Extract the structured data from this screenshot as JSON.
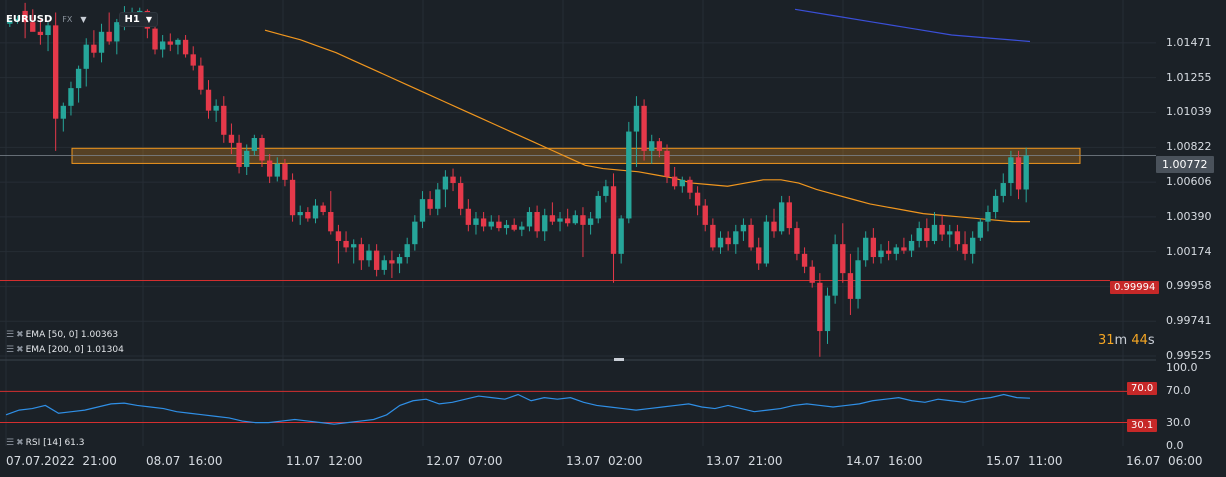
{
  "header": {
    "symbol": "EURUSD",
    "market": "FX",
    "timeframe": "H1"
  },
  "indicators": {
    "ema50": "EMA [50, 0] 1.00363",
    "ema200": "EMA [200, 0] 1.01304",
    "rsi": "RSI [14] 61.3"
  },
  "timer": {
    "minutes": "31",
    "min_unit": "m",
    "seconds": "44",
    "sec_unit": "s"
  },
  "price_axis": [
    "1.01471",
    "1.01255",
    "1.01039",
    "1.00822",
    "1.00606",
    "1.00390",
    "1.00174",
    "0.99958",
    "0.99741",
    "0.99525"
  ],
  "price_tags": {
    "current": "1.00772",
    "line": "0.99994"
  },
  "rsi_axis": [
    "100.0",
    "70.0",
    "30.0",
    "0.0"
  ],
  "rsi_tags": {
    "upper": "70.0",
    "lower": "30.1"
  },
  "time_axis": [
    "07.07.2022  21:00",
    "08.07  16:00",
    "11.07  12:00",
    "12.07  07:00",
    "13.07  02:00",
    "13.07  21:00",
    "14.07  16:00",
    "15.07  11:00",
    "16.07  06:00"
  ],
  "colors": {
    "bg": "#1b2127",
    "up": "#26a69a",
    "down": "#e5394a",
    "ema50": "#f0961e",
    "ema200": "#3a4fd8",
    "rsi": "#2f8fe6",
    "zone": "#f0961e",
    "level": "#d32f2f"
  },
  "chart_data": {
    "type": "candlestick",
    "price_range": [
      0.99525,
      1.01688
    ],
    "rsi_range": [
      0,
      100
    ],
    "candles": [
      {
        "o": 1.0159,
        "h": 1.0162,
        "l": 1.0157,
        "c": 1.0161
      },
      {
        "o": 1.0161,
        "h": 1.0164,
        "l": 1.0159,
        "c": 1.0162
      },
      {
        "o": 1.0167,
        "h": 1.0172,
        "l": 1.015,
        "c": 1.016
      },
      {
        "o": 1.016,
        "h": 1.0168,
        "l": 1.0155,
        "c": 1.0154
      },
      {
        "o": 1.0154,
        "h": 1.0162,
        "l": 1.0146,
        "c": 1.0152
      },
      {
        "o": 1.0152,
        "h": 1.016,
        "l": 1.0142,
        "c": 1.0158
      },
      {
        "o": 1.0158,
        "h": 1.0166,
        "l": 1.008,
        "c": 1.01
      },
      {
        "o": 1.01,
        "h": 1.011,
        "l": 1.0092,
        "c": 1.0108
      },
      {
        "o": 1.0108,
        "h": 1.0123,
        "l": 1.0102,
        "c": 1.0119
      },
      {
        "o": 1.0119,
        "h": 1.0133,
        "l": 1.011,
        "c": 1.0131
      },
      {
        "o": 1.0131,
        "h": 1.015,
        "l": 1.012,
        "c": 1.0146
      },
      {
        "o": 1.0146,
        "h": 1.0155,
        "l": 1.0138,
        "c": 1.0141
      },
      {
        "o": 1.0141,
        "h": 1.0159,
        "l": 1.0135,
        "c": 1.0154
      },
      {
        "o": 1.0154,
        "h": 1.0166,
        "l": 1.0146,
        "c": 1.0148
      },
      {
        "o": 1.0148,
        "h": 1.0162,
        "l": 1.014,
        "c": 1.016
      },
      {
        "o": 1.016,
        "h": 1.017,
        "l": 1.0155,
        "c": 1.0165
      },
      {
        "o": 1.0165,
        "h": 1.0169,
        "l": 1.0158,
        "c": 1.0166
      },
      {
        "o": 1.0166,
        "h": 1.0169,
        "l": 1.016,
        "c": 1.0167
      },
      {
        "o": 1.0167,
        "h": 1.0168,
        "l": 1.015,
        "c": 1.0156
      },
      {
        "o": 1.0156,
        "h": 1.016,
        "l": 1.014,
        "c": 1.0143
      },
      {
        "o": 1.0143,
        "h": 1.0152,
        "l": 1.0138,
        "c": 1.0148
      },
      {
        "o": 1.0148,
        "h": 1.0153,
        "l": 1.0142,
        "c": 1.0146
      },
      {
        "o": 1.0146,
        "h": 1.015,
        "l": 1.014,
        "c": 1.0149
      },
      {
        "o": 1.0149,
        "h": 1.0152,
        "l": 1.0138,
        "c": 1.014
      },
      {
        "o": 1.014,
        "h": 1.0145,
        "l": 1.013,
        "c": 1.0133
      },
      {
        "o": 1.0133,
        "h": 1.0138,
        "l": 1.0115,
        "c": 1.0118
      },
      {
        "o": 1.0118,
        "h": 1.0124,
        "l": 1.01,
        "c": 1.0105
      },
      {
        "o": 1.0105,
        "h": 1.0112,
        "l": 1.0098,
        "c": 1.0108
      },
      {
        "o": 1.0108,
        "h": 1.0114,
        "l": 1.0085,
        "c": 1.009
      },
      {
        "o": 1.009,
        "h": 1.0097,
        "l": 1.0078,
        "c": 1.0085
      },
      {
        "o": 1.0085,
        "h": 1.009,
        "l": 1.0066,
        "c": 1.007
      },
      {
        "o": 1.007,
        "h": 1.0084,
        "l": 1.0065,
        "c": 1.008
      },
      {
        "o": 1.008,
        "h": 1.009,
        "l": 1.0077,
        "c": 1.0088
      },
      {
        "o": 1.0088,
        "h": 1.009,
        "l": 1.007,
        "c": 1.0074
      },
      {
        "o": 1.0074,
        "h": 1.0078,
        "l": 1.006,
        "c": 1.0064
      },
      {
        "o": 1.0064,
        "h": 1.0076,
        "l": 1.0061,
        "c": 1.0072
      },
      {
        "o": 1.0072,
        "h": 1.0075,
        "l": 1.0058,
        "c": 1.0062
      },
      {
        "o": 1.0062,
        "h": 1.0066,
        "l": 1.0036,
        "c": 1.004
      },
      {
        "o": 1.004,
        "h": 1.0046,
        "l": 1.0034,
        "c": 1.0042
      },
      {
        "o": 1.0042,
        "h": 1.0045,
        "l": 1.0036,
        "c": 1.0038
      },
      {
        "o": 1.0038,
        "h": 1.005,
        "l": 1.0035,
        "c": 1.0046
      },
      {
        "o": 1.0046,
        "h": 1.0048,
        "l": 1.004,
        "c": 1.0042
      },
      {
        "o": 1.0042,
        "h": 1.0055,
        "l": 1.0028,
        "c": 1.003
      },
      {
        "o": 1.003,
        "h": 1.0034,
        "l": 1.001,
        "c": 1.0024
      },
      {
        "o": 1.0024,
        "h": 1.003,
        "l": 1.0017,
        "c": 1.002
      },
      {
        "o": 1.002,
        "h": 1.0025,
        "l": 1.001,
        "c": 1.0022
      },
      {
        "o": 1.0022,
        "h": 1.0026,
        "l": 1.0006,
        "c": 1.0012
      },
      {
        "o": 1.0012,
        "h": 1.0022,
        "l": 1.0008,
        "c": 1.0018
      },
      {
        "o": 1.0018,
        "h": 1.0022,
        "l": 1.0002,
        "c": 1.0006
      },
      {
        "o": 1.0006,
        "h": 1.0015,
        "l": 1.0003,
        "c": 1.0012
      },
      {
        "o": 1.0012,
        "h": 1.0018,
        "l": 1.0001,
        "c": 1.001
      },
      {
        "o": 1.001,
        "h": 1.0016,
        "l": 1.0004,
        "c": 1.0014
      },
      {
        "o": 1.0014,
        "h": 1.0026,
        "l": 1.001,
        "c": 1.0022
      },
      {
        "o": 1.0022,
        "h": 1.004,
        "l": 1.0018,
        "c": 1.0036
      },
      {
        "o": 1.0036,
        "h": 1.0055,
        "l": 1.0032,
        "c": 1.005
      },
      {
        "o": 1.005,
        "h": 1.0055,
        "l": 1.004,
        "c": 1.0044
      },
      {
        "o": 1.0044,
        "h": 1.006,
        "l": 1.004,
        "c": 1.0056
      },
      {
        "o": 1.0056,
        "h": 1.0068,
        "l": 1.0045,
        "c": 1.0064
      },
      {
        "o": 1.0064,
        "h": 1.0069,
        "l": 1.0055,
        "c": 1.006
      },
      {
        "o": 1.006,
        "h": 1.0064,
        "l": 1.004,
        "c": 1.0044
      },
      {
        "o": 1.0044,
        "h": 1.005,
        "l": 1.003,
        "c": 1.0034
      },
      {
        "o": 1.0034,
        "h": 1.0042,
        "l": 1.0028,
        "c": 1.0038
      },
      {
        "o": 1.0038,
        "h": 1.0042,
        "l": 1.003,
        "c": 1.0033
      },
      {
        "o": 1.0033,
        "h": 1.004,
        "l": 1.0031,
        "c": 1.0036
      },
      {
        "o": 1.0036,
        "h": 1.004,
        "l": 1.003,
        "c": 1.0032
      },
      {
        "o": 1.0032,
        "h": 1.0037,
        "l": 1.0028,
        "c": 1.0034
      },
      {
        "o": 1.0034,
        "h": 1.0038,
        "l": 1.003,
        "c": 1.0031
      },
      {
        "o": 1.0031,
        "h": 1.0036,
        "l": 1.0027,
        "c": 1.0033
      },
      {
        "o": 1.0033,
        "h": 1.0045,
        "l": 1.003,
        "c": 1.0042
      },
      {
        "o": 1.0042,
        "h": 1.0046,
        "l": 1.0026,
        "c": 1.003
      },
      {
        "o": 1.003,
        "h": 1.0044,
        "l": 1.0024,
        "c": 1.004
      },
      {
        "o": 1.004,
        "h": 1.0048,
        "l": 1.0034,
        "c": 1.0036
      },
      {
        "o": 1.0036,
        "h": 1.0042,
        "l": 1.003,
        "c": 1.0038
      },
      {
        "o": 1.0038,
        "h": 1.0044,
        "l": 1.0033,
        "c": 1.0035
      },
      {
        "o": 1.0035,
        "h": 1.0043,
        "l": 1.0034,
        "c": 1.004
      },
      {
        "o": 1.004,
        "h": 1.0045,
        "l": 1.0014,
        "c": 1.0034
      },
      {
        "o": 1.0034,
        "h": 1.0042,
        "l": 1.0028,
        "c": 1.0038
      },
      {
        "o": 1.0038,
        "h": 1.0055,
        "l": 1.0035,
        "c": 1.0052
      },
      {
        "o": 1.0052,
        "h": 1.0062,
        "l": 1.0048,
        "c": 1.0058
      },
      {
        "o": 1.0058,
        "h": 1.0066,
        "l": 0.9998,
        "c": 1.0016
      },
      {
        "o": 1.0016,
        "h": 1.004,
        "l": 1.001,
        "c": 1.0038
      },
      {
        "o": 1.0038,
        "h": 1.0098,
        "l": 1.0035,
        "c": 1.0092
      },
      {
        "o": 1.0092,
        "h": 1.0114,
        "l": 1.007,
        "c": 1.0108
      },
      {
        "o": 1.0108,
        "h": 1.0112,
        "l": 1.0074,
        "c": 1.008
      },
      {
        "o": 1.008,
        "h": 1.009,
        "l": 1.0072,
        "c": 1.0086
      },
      {
        "o": 1.0086,
        "h": 1.0088,
        "l": 1.0076,
        "c": 1.008
      },
      {
        "o": 1.008,
        "h": 1.0084,
        "l": 1.006,
        "c": 1.0064
      },
      {
        "o": 1.0064,
        "h": 1.007,
        "l": 1.0056,
        "c": 1.0058
      },
      {
        "o": 1.0058,
        "h": 1.0064,
        "l": 1.0054,
        "c": 1.0062
      },
      {
        "o": 1.0062,
        "h": 1.0064,
        "l": 1.005,
        "c": 1.0054
      },
      {
        "o": 1.0054,
        "h": 1.0058,
        "l": 1.004,
        "c": 1.0046
      },
      {
        "o": 1.0046,
        "h": 1.005,
        "l": 1.003,
        "c": 1.0034
      },
      {
        "o": 1.0034,
        "h": 1.0038,
        "l": 1.0018,
        "c": 1.002
      },
      {
        "o": 1.002,
        "h": 1.003,
        "l": 1.0016,
        "c": 1.0026
      },
      {
        "o": 1.0026,
        "h": 1.003,
        "l": 1.0018,
        "c": 1.0022
      },
      {
        "o": 1.0022,
        "h": 1.0034,
        "l": 1.0016,
        "c": 1.003
      },
      {
        "o": 1.003,
        "h": 1.0038,
        "l": 1.0024,
        "c": 1.0034
      },
      {
        "o": 1.0034,
        "h": 1.0038,
        "l": 1.0018,
        "c": 1.002
      },
      {
        "o": 1.002,
        "h": 1.0026,
        "l": 1.0006,
        "c": 1.001
      },
      {
        "o": 1.001,
        "h": 1.004,
        "l": 1.0008,
        "c": 1.0036
      },
      {
        "o": 1.0036,
        "h": 1.0044,
        "l": 1.0026,
        "c": 1.003
      },
      {
        "o": 1.003,
        "h": 1.0052,
        "l": 1.0028,
        "c": 1.0048
      },
      {
        "o": 1.0048,
        "h": 1.0052,
        "l": 1.0028,
        "c": 1.0032
      },
      {
        "o": 1.0032,
        "h": 1.0036,
        "l": 1.0012,
        "c": 1.0016
      },
      {
        "o": 1.0016,
        "h": 1.002,
        "l": 1.0004,
        "c": 1.0008
      },
      {
        "o": 1.0008,
        "h": 1.0012,
        "l": 0.9995,
        "c": 0.9998
      },
      {
        "o": 0.9998,
        "h": 1.0004,
        "l": 0.9952,
        "c": 0.9968
      },
      {
        "o": 0.9968,
        "h": 0.9995,
        "l": 0.996,
        "c": 0.999
      },
      {
        "o": 0.999,
        "h": 1.0028,
        "l": 0.9985,
        "c": 1.0022
      },
      {
        "o": 1.0022,
        "h": 1.0035,
        "l": 0.9998,
        "c": 1.0004
      },
      {
        "o": 1.0004,
        "h": 1.0016,
        "l": 0.9978,
        "c": 0.9988
      },
      {
        "o": 0.9988,
        "h": 1.002,
        "l": 0.9982,
        "c": 1.0012
      },
      {
        "o": 1.0012,
        "h": 1.003,
        "l": 1.0008,
        "c": 1.0026
      },
      {
        "o": 1.0026,
        "h": 1.0032,
        "l": 1.001,
        "c": 1.0014
      },
      {
        "o": 1.0014,
        "h": 1.0022,
        "l": 1.001,
        "c": 1.0018
      },
      {
        "o": 1.0018,
        "h": 1.0024,
        "l": 1.0012,
        "c": 1.0016
      },
      {
        "o": 1.0016,
        "h": 1.0022,
        "l": 1.0012,
        "c": 1.002
      },
      {
        "o": 1.002,
        "h": 1.0026,
        "l": 1.0016,
        "c": 1.0018
      },
      {
        "o": 1.0018,
        "h": 1.0028,
        "l": 1.0014,
        "c": 1.0024
      },
      {
        "o": 1.0024,
        "h": 1.0036,
        "l": 1.002,
        "c": 1.0032
      },
      {
        "o": 1.0032,
        "h": 1.0038,
        "l": 1.002,
        "c": 1.0024
      },
      {
        "o": 1.0024,
        "h": 1.0042,
        "l": 1.0022,
        "c": 1.0034
      },
      {
        "o": 1.0034,
        "h": 1.004,
        "l": 1.0024,
        "c": 1.0028
      },
      {
        "o": 1.0028,
        "h": 1.0034,
        "l": 1.002,
        "c": 1.003
      },
      {
        "o": 1.003,
        "h": 1.0034,
        "l": 1.0018,
        "c": 1.0022
      },
      {
        "o": 1.0022,
        "h": 1.003,
        "l": 1.0012,
        "c": 1.0016
      },
      {
        "o": 1.0016,
        "h": 1.003,
        "l": 1.001,
        "c": 1.0026
      },
      {
        "o": 1.0026,
        "h": 1.0038,
        "l": 1.0024,
        "c": 1.0036
      },
      {
        "o": 1.0036,
        "h": 1.0046,
        "l": 1.003,
        "c": 1.0042
      },
      {
        "o": 1.0042,
        "h": 1.0056,
        "l": 1.0038,
        "c": 1.0052
      },
      {
        "o": 1.0052,
        "h": 1.0066,
        "l": 1.0048,
        "c": 1.006
      },
      {
        "o": 1.006,
        "h": 1.008,
        "l": 1.0052,
        "c": 1.0076
      },
      {
        "o": 1.0076,
        "h": 1.008,
        "l": 1.005,
        "c": 1.0056
      },
      {
        "o": 1.0056,
        "h": 1.0082,
        "l": 1.0048,
        "c": 1.0077
      }
    ],
    "ema50": [
      1.0155,
      1.0152,
      1.0149,
      1.0145,
      1.0141,
      1.0136,
      1.0131,
      1.0126,
      1.0121,
      1.0116,
      1.0111,
      1.0106,
      1.0101,
      1.0096,
      1.0091,
      1.0086,
      1.0081,
      1.0076,
      1.0071,
      1.0069,
      1.0068,
      1.0067,
      1.0065,
      1.0063,
      1.006,
      1.0059,
      1.0058,
      1.006,
      1.0062,
      1.0062,
      1.006,
      1.0056,
      1.0053,
      1.005,
      1.0047,
      1.0045,
      1.0043,
      1.0041,
      1.004,
      1.0039,
      1.0038,
      1.0037,
      1.0036,
      1.0036
    ],
    "ema200": [
      1.0168,
      1.0164,
      1.016,
      1.0156,
      1.0152,
      1.015,
      1.0148
    ],
    "rsi": [
      40,
      46,
      48,
      52,
      42,
      44,
      46,
      50,
      54,
      55,
      52,
      50,
      48,
      44,
      42,
      40,
      38,
      36,
      32,
      30,
      30,
      32,
      34,
      32,
      30,
      28,
      30,
      32,
      34,
      40,
      52,
      58,
      60,
      54,
      56,
      60,
      64,
      62,
      60,
      66,
      58,
      62,
      60,
      62,
      56,
      52,
      50,
      48,
      46,
      48,
      50,
      52,
      54,
      50,
      48,
      52,
      48,
      44,
      46,
      48,
      52,
      54,
      52,
      50,
      52,
      54,
      58,
      60,
      62,
      58,
      56,
      60,
      58,
      56,
      60,
      62,
      66,
      62,
      61.3
    ],
    "zone": [
      1.00722,
      1.00816
    ],
    "level": 0.99994,
    "rsi_levels": [
      70.0,
      30.1
    ]
  }
}
